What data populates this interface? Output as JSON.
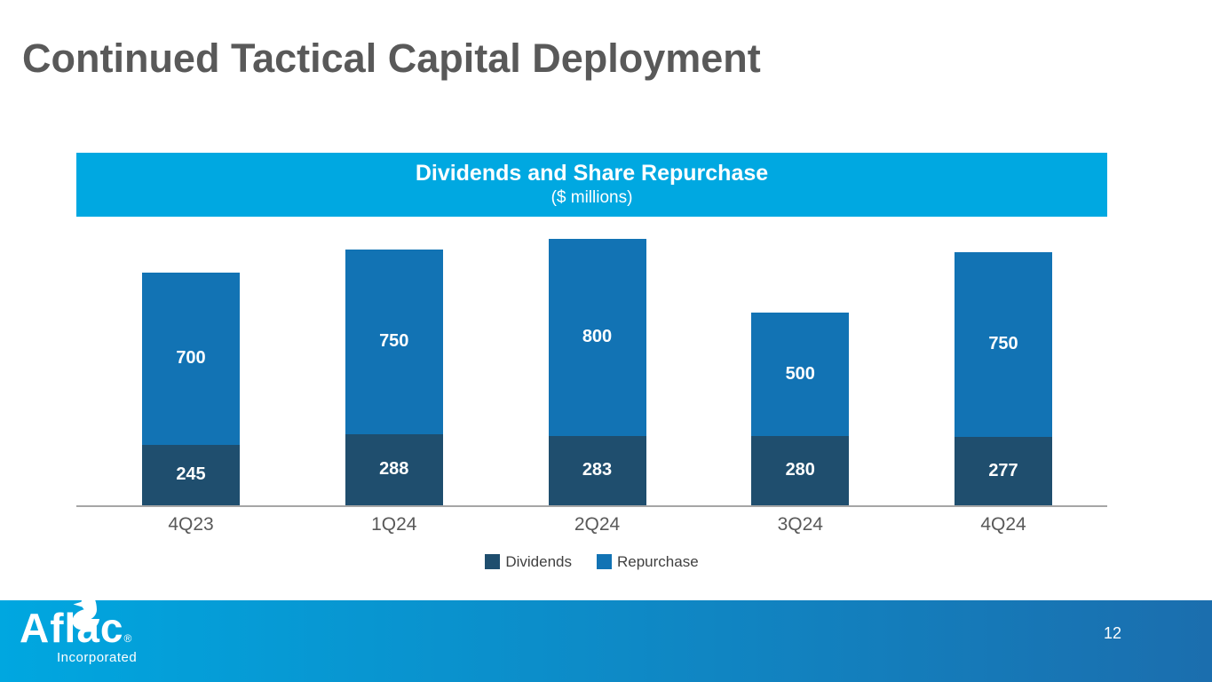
{
  "slide": {
    "title": "Continued Tactical Capital Deployment"
  },
  "chart_data": {
    "type": "bar",
    "stacked": true,
    "title": "Dividends and Share Repurchase",
    "subtitle": "($ millions)",
    "categories": [
      "4Q23",
      "1Q24",
      "2Q24",
      "3Q24",
      "4Q24"
    ],
    "series": [
      {
        "name": "Dividends",
        "color": "#1F4E6E",
        "values": [
          245,
          288,
          283,
          280,
          277
        ]
      },
      {
        "name": "Repurchase",
        "color": "#1273B4",
        "values": [
          700,
          750,
          800,
          500,
          750
        ]
      }
    ],
    "ylim": [
      0,
      1100
    ],
    "grid": false,
    "legend_position": "bottom",
    "value_labels": "inside-center-white"
  },
  "footer": {
    "logo_text": "Aflac",
    "logo_registered": "®",
    "logo_subtext": "Incorporated",
    "page_number": "12"
  },
  "colors": {
    "slide_title": "#595959",
    "chart_header_band": "#00A8E1",
    "axis_line": "#A6A6A6",
    "category_label": "#595959",
    "footer_gradient_left": "#00A7E0",
    "footer_gradient_right": "#1B6EAE"
  }
}
